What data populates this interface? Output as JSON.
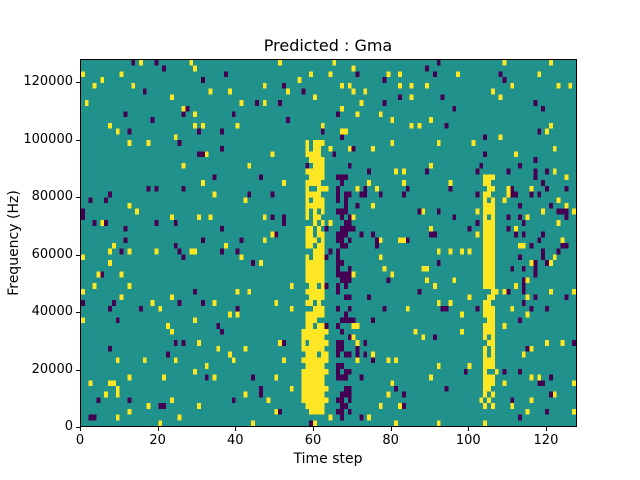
{
  "chart_data": {
    "type": "heatmap",
    "title": "Predicted : Gma",
    "xlabel": "Time step",
    "ylabel": "Frequency (Hz)",
    "x_range": [
      0,
      128
    ],
    "y_range": [
      0,
      128000
    ],
    "x_ticks": [
      "0",
      "20",
      "40",
      "60",
      "80",
      "100",
      "120"
    ],
    "x_tick_values": [
      0,
      20,
      40,
      60,
      80,
      100,
      120
    ],
    "y_ticks": [
      "0",
      "20000",
      "40000",
      "60000",
      "80000",
      "100000",
      "120000"
    ],
    "y_tick_values": [
      0,
      20000,
      40000,
      60000,
      80000,
      100000,
      120000
    ],
    "grid_size": {
      "nx": 128,
      "ny": 64
    },
    "colors": {
      "figure": "#ffffff",
      "background": "#21918c",
      "high": "#fde725",
      "low": "#440154"
    },
    "legend": "none",
    "grid": "off",
    "noise": {
      "seed": 42,
      "p_high": 0.035,
      "p_low": 0.022
    },
    "features": [
      {
        "name": "yellow-vertical-band-main",
        "x0": 58,
        "x1": 63,
        "y0": 4000,
        "y1": 100000,
        "value": "high",
        "density": 0.8
      },
      {
        "name": "yellow-band-main-lower-widening",
        "x0": 57,
        "x1": 64,
        "y0": 8000,
        "y1": 34000,
        "value": "high",
        "density": 0.65
      },
      {
        "name": "purple-vertical-band",
        "x0": 66,
        "x1": 70,
        "y0": 2000,
        "y1": 88000,
        "value": "low",
        "density": 0.45
      },
      {
        "name": "yellow-vertical-band-right",
        "x0": 104,
        "x1": 107,
        "y0": 6000,
        "y1": 88000,
        "value": "high",
        "density": 0.85
      },
      {
        "name": "purple-cluster-right",
        "x0": 110,
        "x1": 126,
        "y0": 40000,
        "y1": 92000,
        "value": "low",
        "density": 0.12
      },
      {
        "name": "purple-cluster-mid",
        "x0": 70,
        "x1": 80,
        "y0": 20000,
        "y1": 70000,
        "value": "low",
        "density": 0.08
      }
    ]
  }
}
